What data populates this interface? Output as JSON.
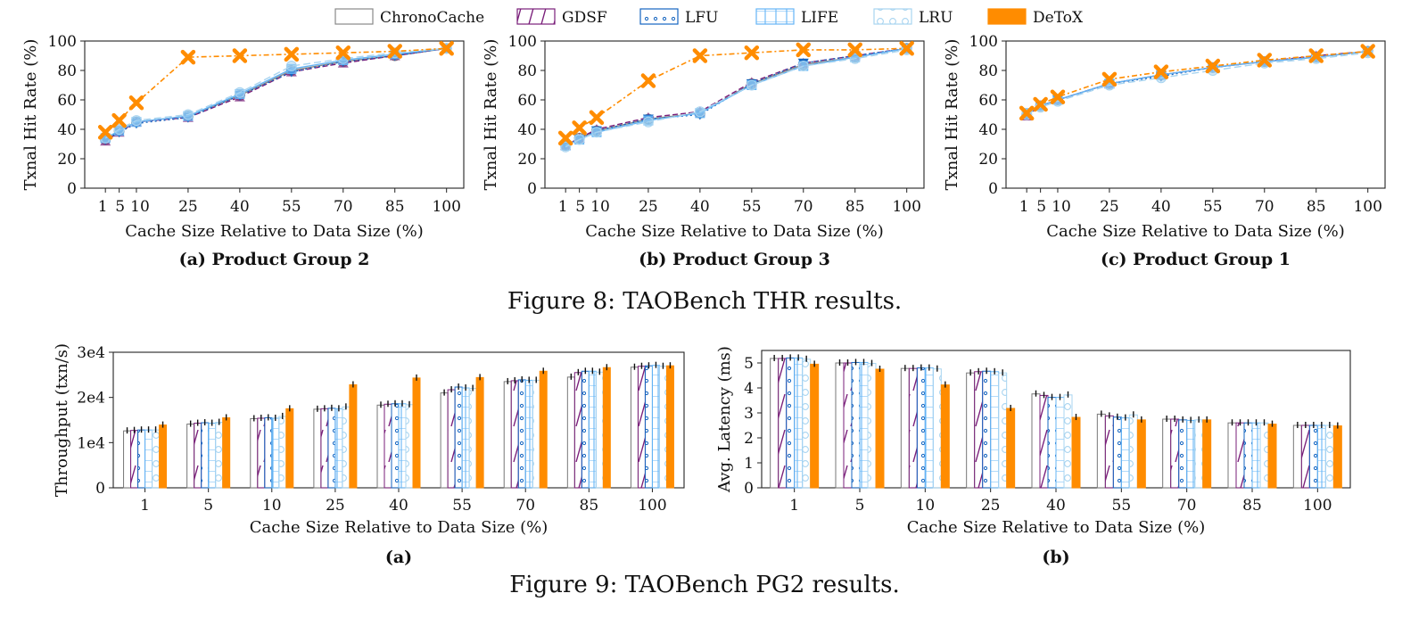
{
  "legend": [
    {
      "name": "ChronoCache",
      "color": "#888888",
      "pattern": "none"
    },
    {
      "name": "GDSF",
      "color": "#7a1f7a",
      "pattern": "diag"
    },
    {
      "name": "LFU",
      "color": "#1565c0",
      "pattern": "dots"
    },
    {
      "name": "LIFE",
      "color": "#64b5f6",
      "pattern": "grid"
    },
    {
      "name": "LRU",
      "color": "#a8d4f0",
      "pattern": "circles"
    },
    {
      "name": "DeToX",
      "color": "#ff8c00",
      "pattern": "solid"
    }
  ],
  "figure8": {
    "caption": "Figure 8: TAOBench THR results.",
    "xlabel": "Cache Size Relative to Data Size (%)",
    "ylabel": "Txnal Hit Rate (%)"
  },
  "figure9": {
    "caption": "Figure 9: TAOBench PG2 results.",
    "xlabel": "Cache Size Relative to Data Size (%)"
  },
  "chart_data": [
    {
      "type": "line",
      "subtitle": "(a) Product Group 2",
      "x": [
        1,
        5,
        10,
        25,
        40,
        55,
        70,
        85,
        100
      ],
      "x_ticks": [
        "1",
        "5",
        "10",
        "25",
        "40",
        "55",
        "70",
        "85",
        "100"
      ],
      "ylim": [
        0,
        100
      ],
      "y_ticks": [
        "0",
        "20",
        "40",
        "60",
        "80",
        "100"
      ],
      "xlabel": "Cache Size Relative to Data Size (%)",
      "ylabel": "Txnal Hit Rate (%)",
      "series": [
        {
          "name": "ChronoCache",
          "values": [
            33,
            39,
            45,
            49,
            63,
            80,
            86,
            90,
            95
          ]
        },
        {
          "name": "GDSF",
          "values": [
            32,
            38,
            45,
            48,
            62,
            79,
            85,
            90,
            95
          ]
        },
        {
          "name": "LFU",
          "values": [
            33,
            38,
            44,
            48,
            63,
            79,
            86,
            90,
            95
          ]
        },
        {
          "name": "LIFE",
          "values": [
            34,
            39,
            45,
            49,
            64,
            81,
            87,
            91,
            95
          ]
        },
        {
          "name": "LRU",
          "values": [
            34,
            40,
            46,
            50,
            65,
            83,
            88,
            92,
            95
          ]
        },
        {
          "name": "DeToX",
          "values": [
            38,
            46,
            58,
            89,
            90,
            91,
            92,
            93,
            95
          ]
        }
      ]
    },
    {
      "type": "line",
      "subtitle": "(b) Product Group 3",
      "x": [
        1,
        5,
        10,
        25,
        40,
        55,
        70,
        85,
        100
      ],
      "x_ticks": [
        "1",
        "5",
        "10",
        "25",
        "40",
        "55",
        "70",
        "85",
        "100"
      ],
      "ylim": [
        0,
        100
      ],
      "y_ticks": [
        "0",
        "20",
        "40",
        "60",
        "80",
        "100"
      ],
      "xlabel": "Cache Size Relative to Data Size (%)",
      "ylabel": "Txnal Hit Rate (%)",
      "series": [
        {
          "name": "ChronoCache",
          "values": [
            29,
            34,
            39,
            47,
            51,
            71,
            84,
            89,
            95
          ]
        },
        {
          "name": "GDSF",
          "values": [
            29,
            34,
            40,
            48,
            52,
            72,
            85,
            90,
            95
          ]
        },
        {
          "name": "LFU",
          "values": [
            29,
            33,
            39,
            47,
            50,
            71,
            85,
            90,
            95
          ]
        },
        {
          "name": "LIFE",
          "values": [
            29,
            33,
            38,
            46,
            51,
            70,
            83,
            89,
            95
          ]
        },
        {
          "name": "LRU",
          "values": [
            28,
            33,
            38,
            45,
            52,
            70,
            83,
            88,
            94
          ]
        },
        {
          "name": "DeToX",
          "values": [
            34,
            41,
            48,
            73,
            90,
            92,
            94,
            94,
            95
          ]
        }
      ]
    },
    {
      "type": "line",
      "subtitle": "(c) Product Group 1",
      "x": [
        1,
        5,
        10,
        25,
        40,
        55,
        70,
        85,
        100
      ],
      "x_ticks": [
        "1",
        "5",
        "10",
        "25",
        "40",
        "55",
        "70",
        "85",
        "100"
      ],
      "ylim": [
        0,
        100
      ],
      "y_ticks": [
        "0",
        "20",
        "40",
        "60",
        "80",
        "100"
      ],
      "xlabel": "Cache Size Relative to Data Size (%)",
      "ylabel": "Txnal Hit Rate (%)",
      "series": [
        {
          "name": "ChronoCache",
          "values": [
            50,
            56,
            60,
            71,
            77,
            82,
            86,
            89,
            93
          ]
        },
        {
          "name": "GDSF",
          "values": [
            49,
            56,
            60,
            71,
            77,
            82,
            86,
            90,
            93
          ]
        },
        {
          "name": "LFU",
          "values": [
            50,
            56,
            60,
            71,
            76,
            82,
            86,
            89,
            93
          ]
        },
        {
          "name": "LIFE",
          "values": [
            51,
            56,
            60,
            71,
            77,
            82,
            86,
            89,
            93
          ]
        },
        {
          "name": "LRU",
          "values": [
            50,
            55,
            59,
            70,
            75,
            80,
            85,
            88,
            92
          ]
        },
        {
          "name": "DeToX",
          "values": [
            51,
            57,
            62,
            74,
            79,
            83,
            87,
            90,
            93
          ]
        }
      ]
    },
    {
      "type": "bar",
      "subtitle": "(a)",
      "categories": [
        "1",
        "5",
        "10",
        "25",
        "40",
        "55",
        "70",
        "85",
        "100"
      ],
      "ylim": [
        0,
        30000
      ],
      "y_ticks": [
        "0",
        "1e4",
        "2e4",
        "3e4"
      ],
      "xlabel": "Cache Size Relative to Data Size (%)",
      "ylabel": "Throughput (txn/s)",
      "series": [
        {
          "name": "ChronoCache",
          "values": [
            12600,
            14100,
            15300,
            17400,
            18300,
            21000,
            23500,
            24500,
            26700
          ]
        },
        {
          "name": "GDSF",
          "values": [
            12700,
            14300,
            15400,
            17500,
            18500,
            21700,
            23700,
            25500,
            26900
          ]
        },
        {
          "name": "LFU",
          "values": [
            12800,
            14400,
            15500,
            17600,
            18600,
            22300,
            23900,
            25800,
            27000
          ]
        },
        {
          "name": "LIFE",
          "values": [
            12800,
            14300,
            15400,
            17500,
            18600,
            22100,
            23800,
            25800,
            27100
          ]
        },
        {
          "name": "LRU",
          "values": [
            12800,
            14500,
            15800,
            17900,
            18400,
            22000,
            23800,
            25600,
            26900
          ]
        },
        {
          "name": "DeToX",
          "values": [
            13900,
            15500,
            17500,
            22800,
            24300,
            24400,
            25800,
            26600,
            27000
          ]
        }
      ]
    },
    {
      "type": "bar",
      "subtitle": "(b)",
      "categories": [
        "1",
        "5",
        "10",
        "25",
        "40",
        "55",
        "70",
        "85",
        "100"
      ],
      "ylim": [
        0,
        5.5
      ],
      "y_ticks": [
        "0",
        "1",
        "2",
        "3",
        "4",
        "5"
      ],
      "xlabel": "Cache Size Relative to Data Size (%)",
      "ylabel": "Avg. Latency (ms)",
      "series": [
        {
          "name": "ChronoCache",
          "values": [
            5.18,
            5.0,
            4.78,
            4.6,
            3.76,
            2.95,
            2.75,
            2.6,
            2.5
          ]
        },
        {
          "name": "GDSF",
          "values": [
            5.18,
            5.0,
            4.78,
            4.65,
            3.7,
            2.88,
            2.75,
            2.6,
            2.5
          ]
        },
        {
          "name": "LFU",
          "values": [
            5.2,
            5.02,
            4.8,
            4.67,
            3.62,
            2.83,
            2.72,
            2.6,
            2.5
          ]
        },
        {
          "name": "LIFE",
          "values": [
            5.2,
            5.02,
            4.8,
            4.65,
            3.62,
            2.8,
            2.7,
            2.6,
            2.5
          ]
        },
        {
          "name": "LRU",
          "values": [
            5.15,
            4.98,
            4.76,
            4.6,
            3.72,
            2.92,
            2.72,
            2.6,
            2.5
          ]
        },
        {
          "name": "DeToX",
          "values": [
            4.95,
            4.75,
            4.12,
            3.18,
            2.82,
            2.72,
            2.72,
            2.55,
            2.48
          ]
        }
      ]
    }
  ]
}
